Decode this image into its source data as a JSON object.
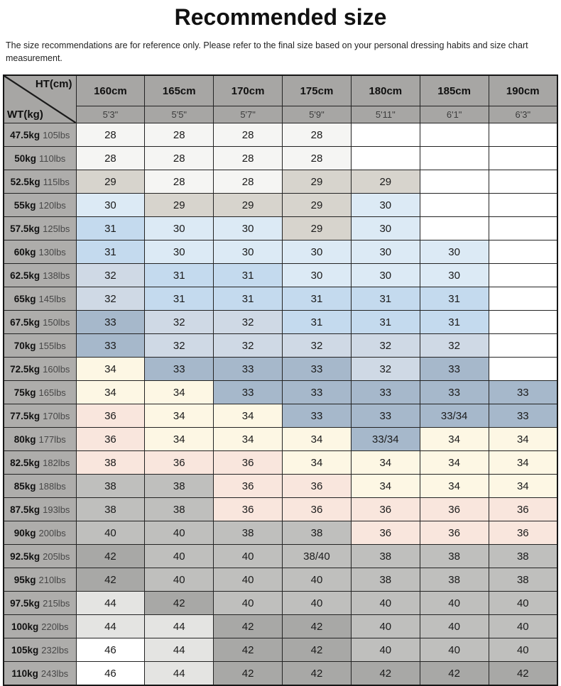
{
  "page": {
    "title": "Recommended size",
    "disclaimer": "The size recommendations are for reference only. Please refer to the final size based on your personal dressing habits and size chart measurement."
  },
  "table": {
    "corner": {
      "top_label": "HT(cm)",
      "bottom_label": "WT(kg)"
    },
    "header_bg": "#a7a6a4",
    "label_bg": "#aeadab",
    "border_color": "#232323",
    "columns": [
      {
        "cm": "160cm",
        "ft": "5'3\""
      },
      {
        "cm": "165cm",
        "ft": "5'5\""
      },
      {
        "cm": "170cm",
        "ft": "5'7\""
      },
      {
        "cm": "175cm",
        "ft": "5'9\""
      },
      {
        "cm": "180cm",
        "ft": "5'11\""
      },
      {
        "cm": "185cm",
        "ft": "6'1\""
      },
      {
        "cm": "190cm",
        "ft": "6'3\""
      }
    ],
    "colors": {
      "A": "#f5f5f3",
      "B": "#d7d4cd",
      "C": "#dcEAf5",
      "D": "#c4daee",
      "E": "#cfd9e5",
      "F": "#a6b8cb",
      "G": "#fdf7e4",
      "H": "#f9e6dd",
      "I": "#bfbfbd",
      "J": "#a8a8a6",
      "K": "#e4e4e2",
      "L": "#ffffff"
    },
    "rows": [
      {
        "kg": "47.5kg",
        "lbs": "105lbs",
        "cells": [
          {
            "v": "28",
            "c": "A"
          },
          {
            "v": "28",
            "c": "A"
          },
          {
            "v": "28",
            "c": "A"
          },
          {
            "v": "28",
            "c": "A"
          },
          {
            "v": "",
            "c": "L"
          },
          {
            "v": "",
            "c": "L"
          },
          {
            "v": "",
            "c": "L"
          }
        ]
      },
      {
        "kg": "50kg",
        "lbs": "110lbs",
        "cells": [
          {
            "v": "28",
            "c": "A"
          },
          {
            "v": "28",
            "c": "A"
          },
          {
            "v": "28",
            "c": "A"
          },
          {
            "v": "28",
            "c": "A"
          },
          {
            "v": "",
            "c": "L"
          },
          {
            "v": "",
            "c": "L"
          },
          {
            "v": "",
            "c": "L"
          }
        ]
      },
      {
        "kg": "52.5kg",
        "lbs": "115lbs",
        "cells": [
          {
            "v": "29",
            "c": "B"
          },
          {
            "v": "28",
            "c": "A"
          },
          {
            "v": "28",
            "c": "A"
          },
          {
            "v": "29",
            "c": "B"
          },
          {
            "v": "29",
            "c": "B"
          },
          {
            "v": "",
            "c": "L"
          },
          {
            "v": "",
            "c": "L"
          }
        ]
      },
      {
        "kg": "55kg",
        "lbs": "120lbs",
        "cells": [
          {
            "v": "30",
            "c": "C"
          },
          {
            "v": "29",
            "c": "B"
          },
          {
            "v": "29",
            "c": "B"
          },
          {
            "v": "29",
            "c": "B"
          },
          {
            "v": "30",
            "c": "C"
          },
          {
            "v": "",
            "c": "L"
          },
          {
            "v": "",
            "c": "L"
          }
        ]
      },
      {
        "kg": "57.5kg",
        "lbs": "125lbs",
        "cells": [
          {
            "v": "31",
            "c": "D"
          },
          {
            "v": "30",
            "c": "C"
          },
          {
            "v": "30",
            "c": "C"
          },
          {
            "v": "29",
            "c": "B"
          },
          {
            "v": "30",
            "c": "C"
          },
          {
            "v": "",
            "c": "L"
          },
          {
            "v": "",
            "c": "L"
          }
        ]
      },
      {
        "kg": "60kg",
        "lbs": "130lbs",
        "cells": [
          {
            "v": "31",
            "c": "D"
          },
          {
            "v": "30",
            "c": "C"
          },
          {
            "v": "30",
            "c": "C"
          },
          {
            "v": "30",
            "c": "C"
          },
          {
            "v": "30",
            "c": "C"
          },
          {
            "v": "30",
            "c": "C"
          },
          {
            "v": "",
            "c": "L"
          }
        ]
      },
      {
        "kg": "62.5kg",
        "lbs": "138lbs",
        "cells": [
          {
            "v": "32",
            "c": "E"
          },
          {
            "v": "31",
            "c": "D"
          },
          {
            "v": "31",
            "c": "D"
          },
          {
            "v": "30",
            "c": "C"
          },
          {
            "v": "30",
            "c": "C"
          },
          {
            "v": "30",
            "c": "C"
          },
          {
            "v": "",
            "c": "L"
          }
        ]
      },
      {
        "kg": "65kg",
        "lbs": "145lbs",
        "cells": [
          {
            "v": "32",
            "c": "E"
          },
          {
            "v": "31",
            "c": "D"
          },
          {
            "v": "31",
            "c": "D"
          },
          {
            "v": "31",
            "c": "D"
          },
          {
            "v": "31",
            "c": "D"
          },
          {
            "v": "31",
            "c": "D"
          },
          {
            "v": "",
            "c": "L"
          }
        ]
      },
      {
        "kg": "67.5kg",
        "lbs": "150lbs",
        "cells": [
          {
            "v": "33",
            "c": "F"
          },
          {
            "v": "32",
            "c": "E"
          },
          {
            "v": "32",
            "c": "E"
          },
          {
            "v": "31",
            "c": "D"
          },
          {
            "v": "31",
            "c": "D"
          },
          {
            "v": "31",
            "c": "D"
          },
          {
            "v": "",
            "c": "L"
          }
        ]
      },
      {
        "kg": "70kg",
        "lbs": "155lbs",
        "cells": [
          {
            "v": "33",
            "c": "F"
          },
          {
            "v": "32",
            "c": "E"
          },
          {
            "v": "32",
            "c": "E"
          },
          {
            "v": "32",
            "c": "E"
          },
          {
            "v": "32",
            "c": "E"
          },
          {
            "v": "32",
            "c": "E"
          },
          {
            "v": "",
            "c": "L"
          }
        ]
      },
      {
        "kg": "72.5kg",
        "lbs": "160lbs",
        "cells": [
          {
            "v": "34",
            "c": "G"
          },
          {
            "v": "33",
            "c": "F"
          },
          {
            "v": "33",
            "c": "F"
          },
          {
            "v": "33",
            "c": "F"
          },
          {
            "v": "32",
            "c": "E"
          },
          {
            "v": "33",
            "c": "F"
          },
          {
            "v": "",
            "c": "L"
          }
        ]
      },
      {
        "kg": "75kg",
        "lbs": "165lbs",
        "cells": [
          {
            "v": "34",
            "c": "G"
          },
          {
            "v": "34",
            "c": "G"
          },
          {
            "v": "33",
            "c": "F"
          },
          {
            "v": "33",
            "c": "F"
          },
          {
            "v": "33",
            "c": "F"
          },
          {
            "v": "33",
            "c": "F"
          },
          {
            "v": "33",
            "c": "F"
          }
        ]
      },
      {
        "kg": "77.5kg",
        "lbs": "170lbs",
        "cells": [
          {
            "v": "36",
            "c": "H"
          },
          {
            "v": "34",
            "c": "G"
          },
          {
            "v": "34",
            "c": "G"
          },
          {
            "v": "33",
            "c": "F"
          },
          {
            "v": "33",
            "c": "F"
          },
          {
            "v": "33/34",
            "c": "F"
          },
          {
            "v": "33",
            "c": "F"
          }
        ]
      },
      {
        "kg": "80kg",
        "lbs": "177lbs",
        "cells": [
          {
            "v": "36",
            "c": "H"
          },
          {
            "v": "34",
            "c": "G"
          },
          {
            "v": "34",
            "c": "G"
          },
          {
            "v": "34",
            "c": "G"
          },
          {
            "v": "33/34",
            "c": "F"
          },
          {
            "v": "34",
            "c": "G"
          },
          {
            "v": "34",
            "c": "G"
          }
        ]
      },
      {
        "kg": "82.5kg",
        "lbs": "182lbs",
        "cells": [
          {
            "v": "38",
            "c": "H"
          },
          {
            "v": "36",
            "c": "H"
          },
          {
            "v": "36",
            "c": "H"
          },
          {
            "v": "34",
            "c": "G"
          },
          {
            "v": "34",
            "c": "G"
          },
          {
            "v": "34",
            "c": "G"
          },
          {
            "v": "34",
            "c": "G"
          }
        ]
      },
      {
        "kg": "85kg",
        "lbs": "188lbs",
        "cells": [
          {
            "v": "38",
            "c": "I"
          },
          {
            "v": "38",
            "c": "I"
          },
          {
            "v": "36",
            "c": "H"
          },
          {
            "v": "36",
            "c": "H"
          },
          {
            "v": "34",
            "c": "G"
          },
          {
            "v": "34",
            "c": "G"
          },
          {
            "v": "34",
            "c": "G"
          }
        ]
      },
      {
        "kg": "87.5kg",
        "lbs": "193lbs",
        "cells": [
          {
            "v": "38",
            "c": "I"
          },
          {
            "v": "38",
            "c": "I"
          },
          {
            "v": "36",
            "c": "H"
          },
          {
            "v": "36",
            "c": "H"
          },
          {
            "v": "36",
            "c": "H"
          },
          {
            "v": "36",
            "c": "H"
          },
          {
            "v": "36",
            "c": "H"
          }
        ]
      },
      {
        "kg": "90kg",
        "lbs": "200lbs",
        "cells": [
          {
            "v": "40",
            "c": "I"
          },
          {
            "v": "40",
            "c": "I"
          },
          {
            "v": "38",
            "c": "I"
          },
          {
            "v": "38",
            "c": "I"
          },
          {
            "v": "36",
            "c": "H"
          },
          {
            "v": "36",
            "c": "H"
          },
          {
            "v": "36",
            "c": "H"
          }
        ]
      },
      {
        "kg": "92.5kg",
        "lbs": "205lbs",
        "cells": [
          {
            "v": "42",
            "c": "J"
          },
          {
            "v": "40",
            "c": "I"
          },
          {
            "v": "40",
            "c": "I"
          },
          {
            "v": "38/40",
            "c": "I"
          },
          {
            "v": "38",
            "c": "I"
          },
          {
            "v": "38",
            "c": "I"
          },
          {
            "v": "38",
            "c": "I"
          }
        ]
      },
      {
        "kg": "95kg",
        "lbs": "210lbs",
        "cells": [
          {
            "v": "42",
            "c": "J"
          },
          {
            "v": "40",
            "c": "I"
          },
          {
            "v": "40",
            "c": "I"
          },
          {
            "v": "40",
            "c": "I"
          },
          {
            "v": "38",
            "c": "I"
          },
          {
            "v": "38",
            "c": "I"
          },
          {
            "v": "38",
            "c": "I"
          }
        ]
      },
      {
        "kg": "97.5kg",
        "lbs": "215lbs",
        "cells": [
          {
            "v": "44",
            "c": "K"
          },
          {
            "v": "42",
            "c": "J"
          },
          {
            "v": "40",
            "c": "I"
          },
          {
            "v": "40",
            "c": "I"
          },
          {
            "v": "40",
            "c": "I"
          },
          {
            "v": "40",
            "c": "I"
          },
          {
            "v": "40",
            "c": "I"
          }
        ]
      },
      {
        "kg": "100kg",
        "lbs": "220lbs",
        "cells": [
          {
            "v": "44",
            "c": "K"
          },
          {
            "v": "44",
            "c": "K"
          },
          {
            "v": "42",
            "c": "J"
          },
          {
            "v": "42",
            "c": "J"
          },
          {
            "v": "40",
            "c": "I"
          },
          {
            "v": "40",
            "c": "I"
          },
          {
            "v": "40",
            "c": "I"
          }
        ]
      },
      {
        "kg": "105kg",
        "lbs": "232lbs",
        "cells": [
          {
            "v": "46",
            "c": "L"
          },
          {
            "v": "44",
            "c": "K"
          },
          {
            "v": "42",
            "c": "J"
          },
          {
            "v": "42",
            "c": "J"
          },
          {
            "v": "40",
            "c": "I"
          },
          {
            "v": "40",
            "c": "I"
          },
          {
            "v": "40",
            "c": "I"
          }
        ]
      },
      {
        "kg": "110kg",
        "lbs": "243lbs",
        "cells": [
          {
            "v": "46",
            "c": "L"
          },
          {
            "v": "44",
            "c": "K"
          },
          {
            "v": "42",
            "c": "J"
          },
          {
            "v": "42",
            "c": "J"
          },
          {
            "v": "42",
            "c": "J"
          },
          {
            "v": "42",
            "c": "J"
          },
          {
            "v": "42",
            "c": "J"
          }
        ]
      }
    ]
  }
}
